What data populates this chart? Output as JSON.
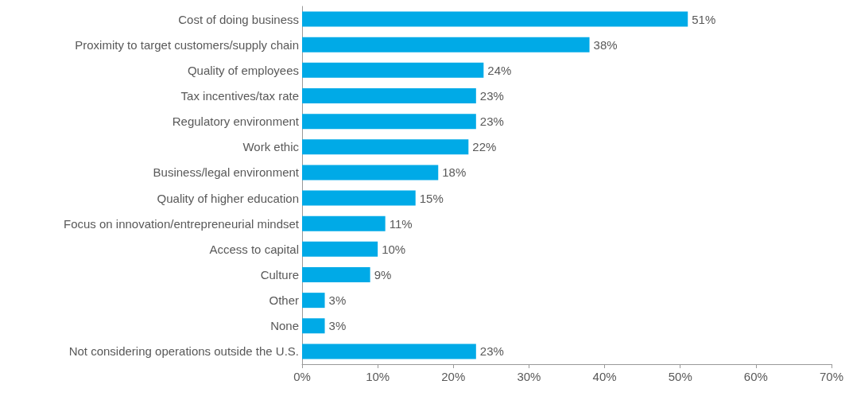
{
  "chart_data": {
    "type": "bar",
    "orientation": "horizontal",
    "categories": [
      "Cost of doing business",
      "Proximity to target customers/supply chain",
      "Quality of employees",
      "Tax incentives/tax rate",
      "Regulatory environment",
      "Work ethic",
      "Business/legal environment",
      "Quality of higher education",
      "Focus on innovation/entrepreneurial mindset",
      "Access to capital",
      "Culture",
      "Other",
      "None",
      "Not considering operations outside the U.S."
    ],
    "values": [
      51,
      38,
      24,
      23,
      23,
      22,
      18,
      15,
      11,
      10,
      9,
      3,
      3,
      23
    ],
    "value_labels": [
      "51%",
      "38%",
      "24%",
      "23%",
      "23%",
      "22%",
      "18%",
      "15%",
      "11%",
      "10%",
      "9%",
      "3%",
      "3%",
      "23%"
    ],
    "color": "#00aae7",
    "xlim": [
      0,
      70
    ],
    "xticks": [
      {
        "value": 0,
        "label": "0%"
      },
      {
        "value": 10,
        "label": "10%"
      },
      {
        "value": 20,
        "label": "20%"
      },
      {
        "value": 30,
        "label": "30%"
      },
      {
        "value": 40,
        "label": "40%"
      },
      {
        "value": 50,
        "label": "50%"
      },
      {
        "value": 60,
        "label": "60%"
      },
      {
        "value": 70,
        "label": "70%"
      }
    ],
    "grid": false
  }
}
